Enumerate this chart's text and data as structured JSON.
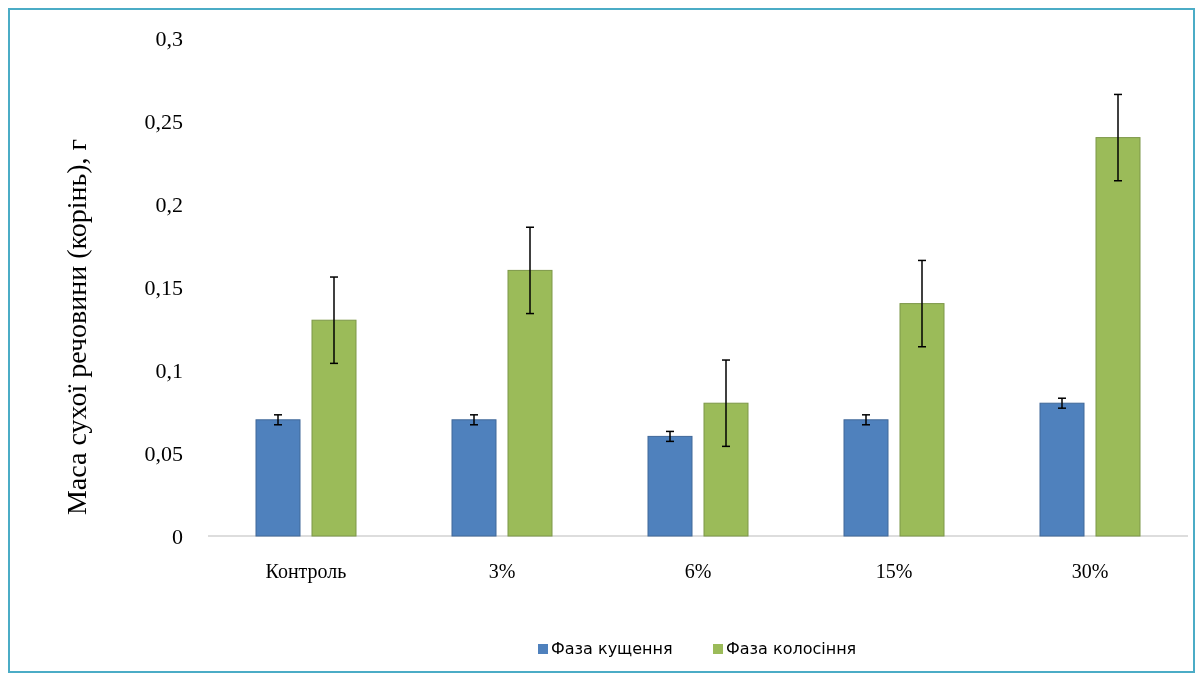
{
  "chart_data": {
    "type": "bar",
    "ylabel": "Маса сухої речовини (корінь), г",
    "categories": [
      "Контроль",
      "3%",
      "6%",
      "15%",
      "30%"
    ],
    "series": [
      {
        "name": "Фаза кущення",
        "color": "#4f81bd",
        "values": [
          0.07,
          0.07,
          0.06,
          0.07,
          0.08
        ],
        "errors": [
          0.003,
          0.003,
          0.003,
          0.003,
          0.003
        ]
      },
      {
        "name": "Фаза колосіння",
        "color": "#9bbb59",
        "values": [
          0.13,
          0.16,
          0.08,
          0.14,
          0.24
        ],
        "errors": [
          0.026,
          0.026,
          0.026,
          0.026,
          0.026
        ]
      }
    ],
    "ylim": [
      0,
      0.3
    ],
    "yticks": [
      {
        "value": 0,
        "label": "0"
      },
      {
        "value": 0.05,
        "label": "0,05"
      },
      {
        "value": 0.1,
        "label": "0,1"
      },
      {
        "value": 0.15,
        "label": "0,15"
      },
      {
        "value": 0.2,
        "label": "0,2"
      },
      {
        "value": 0.25,
        "label": "0,25"
      },
      {
        "value": 0.3,
        "label": "0,3"
      }
    ],
    "grid": false,
    "legend": "bottom"
  }
}
